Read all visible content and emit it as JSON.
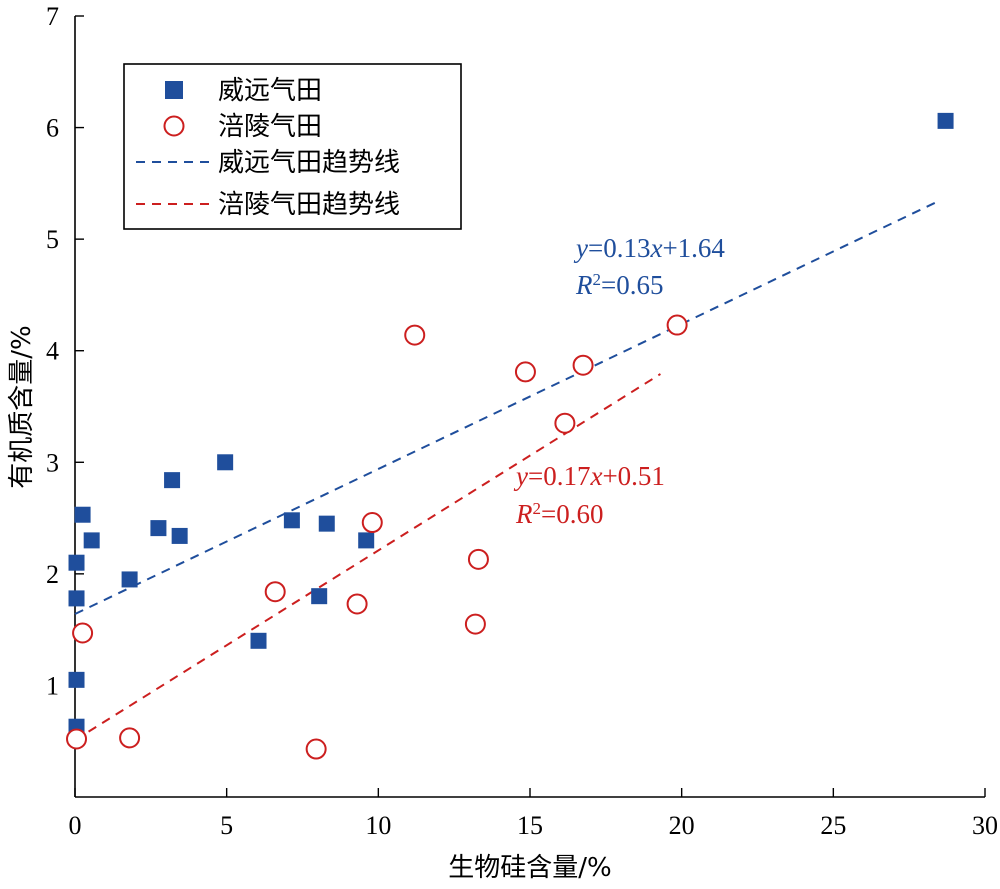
{
  "chart_data": {
    "type": "scatter",
    "xlabel": "生物硅含量/%",
    "ylabel": "有机质含量/%",
    "xlim": [
      0,
      30
    ],
    "ylim": [
      0,
      7
    ],
    "xticks": [
      0,
      5,
      10,
      15,
      20,
      25,
      30
    ],
    "yticks": [
      1,
      2,
      3,
      4,
      5,
      6,
      7
    ],
    "grid": false,
    "legend_position": "top-left",
    "colors": {
      "weiyuan": "#1f4e9c",
      "fuling": "#cc1f1f"
    },
    "series": [
      {
        "name": "威远气田",
        "marker": "filled-square",
        "color": "#1f4e9c",
        "points": [
          [
            0.05,
            0.63
          ],
          [
            0.05,
            1.05
          ],
          [
            0.05,
            1.78
          ],
          [
            0.05,
            2.1
          ],
          [
            0.25,
            2.53
          ],
          [
            0.55,
            2.3
          ],
          [
            1.8,
            1.95
          ],
          [
            2.75,
            2.41
          ],
          [
            3.2,
            2.84
          ],
          [
            3.45,
            2.34
          ],
          [
            4.95,
            3.0
          ],
          [
            6.05,
            1.4
          ],
          [
            7.15,
            2.48
          ],
          [
            8.05,
            1.8
          ],
          [
            8.3,
            2.45
          ],
          [
            9.6,
            2.3
          ],
          [
            28.7,
            6.06
          ]
        ]
      },
      {
        "name": "涪陵气田",
        "marker": "open-circle",
        "color": "#cc1f1f",
        "points": [
          [
            0.05,
            0.52
          ],
          [
            0.25,
            1.47
          ],
          [
            1.8,
            0.53
          ],
          [
            6.6,
            1.84
          ],
          [
            7.95,
            0.43
          ],
          [
            9.3,
            1.73
          ],
          [
            9.8,
            2.46
          ],
          [
            11.2,
            4.14
          ],
          [
            13.2,
            1.55
          ],
          [
            13.3,
            2.13
          ],
          [
            14.85,
            3.81
          ],
          [
            16.15,
            3.35
          ],
          [
            16.75,
            3.87
          ],
          [
            19.85,
            4.23
          ]
        ]
      }
    ],
    "trendlines": [
      {
        "name": "威远气田趋势线",
        "slope": 0.13,
        "intercept": 1.64,
        "x_range": [
          0,
          28.5
        ],
        "color": "#1f4e9c",
        "style": "dashed"
      },
      {
        "name": "涪陵气田趋势线",
        "slope": 0.17,
        "intercept": 0.51,
        "x_range": [
          0,
          19.3
        ],
        "color": "#cc1f1f",
        "style": "dashed"
      }
    ],
    "annotations": [
      {
        "id": "weiyuan",
        "equation": "y=0.13x+1.64",
        "r2": "R²=0.65",
        "color": "#1f4e9c"
      },
      {
        "id": "fuling",
        "equation": "y=0.17x+0.51",
        "r2": "R²=0.60",
        "color": "#cc1f1f"
      }
    ]
  }
}
